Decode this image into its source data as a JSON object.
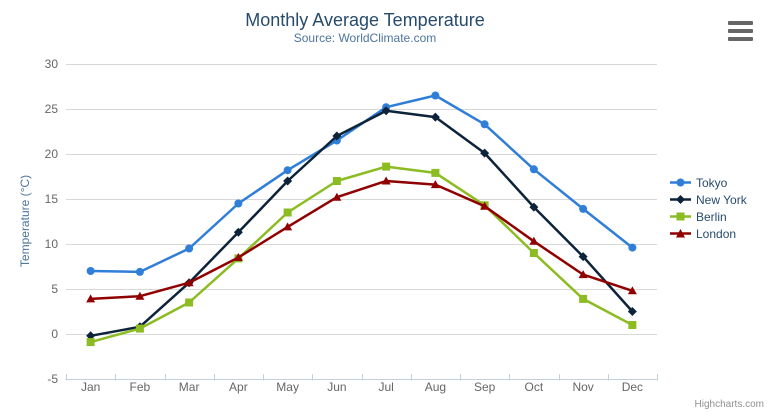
{
  "header": {
    "title": "Monthly Average Temperature",
    "subtitle": "Source: WorldClimate.com"
  },
  "credits": {
    "label": "Highcharts.com"
  },
  "icons": {
    "export_menu": "hamburger-menu-icon"
  },
  "colors": {
    "title": "#274b6d",
    "subtitle": "#4d759e",
    "axis_label": "#666666",
    "axis_title": "#4d759e",
    "grid_line": "#d8d8d8",
    "axis_line": "#c0d0e0",
    "legend_text": "#274b6d",
    "credits_text": "#909090",
    "menu_icon": "#666666",
    "background": "#ffffff"
  },
  "chart_data": {
    "type": "line",
    "title": "Monthly Average Temperature",
    "subtitle": "Source: WorldClimate.com",
    "categories": [
      "Jan",
      "Feb",
      "Mar",
      "Apr",
      "May",
      "Jun",
      "Jul",
      "Aug",
      "Sep",
      "Oct",
      "Nov",
      "Dec"
    ],
    "xlabel": "",
    "ylabel": "Temperature (°C)",
    "ylim": [
      -5,
      30
    ],
    "yticks": [
      -5,
      0,
      5,
      10,
      15,
      20,
      25,
      30
    ],
    "grid": true,
    "legend_position": "right",
    "series": [
      {
        "name": "Tokyo",
        "color": "#2f7ed8",
        "marker": "circle",
        "values": [
          7.0,
          6.9,
          9.5,
          14.5,
          18.2,
          21.5,
          25.2,
          26.5,
          23.3,
          18.3,
          13.9,
          9.6
        ]
      },
      {
        "name": "New York",
        "color": "#0d233a",
        "marker": "diamond",
        "values": [
          -0.2,
          0.8,
          5.7,
          11.3,
          17.0,
          22.0,
          24.8,
          24.1,
          20.1,
          14.1,
          8.6,
          2.5
        ]
      },
      {
        "name": "Berlin",
        "color": "#8bbc21",
        "marker": "square",
        "values": [
          -0.9,
          0.6,
          3.5,
          8.4,
          13.5,
          17.0,
          18.6,
          17.9,
          14.3,
          9.0,
          3.9,
          1.0
        ]
      },
      {
        "name": "London",
        "color": "#910000",
        "marker": "triangle",
        "values": [
          3.9,
          4.2,
          5.7,
          8.5,
          11.9,
          15.2,
          17.0,
          16.6,
          14.2,
          10.3,
          6.6,
          4.8
        ]
      }
    ]
  }
}
